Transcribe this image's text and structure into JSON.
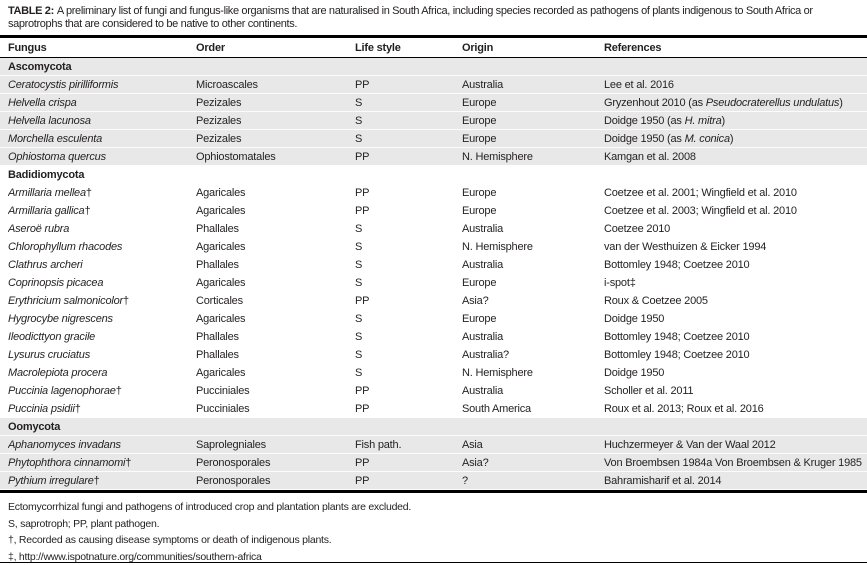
{
  "title": {
    "label": "TABLE 2:",
    "text": "A preliminary list of fungi and fungus-like organisms that are naturalised in South Africa, including species recorded as pathogens of plants indigenous to South Africa or saprotrophs that are considered to be native to other continents."
  },
  "columns": [
    "Fungus",
    "Order",
    "Life style",
    "Origin",
    "References"
  ],
  "colors": {
    "section_shade": "#e8e8e8",
    "text": "#231f20",
    "rule": "#000000"
  },
  "sections": [
    {
      "name": "Ascomycota",
      "shaded": true,
      "rows": [
        {
          "fungus": [
            [
              "Ceratocystis pirilliformis",
              true
            ]
          ],
          "order": "Microascales",
          "lifestyle": "PP",
          "origin": "Australia",
          "references": [
            [
              "Lee et al. 2016",
              false
            ]
          ]
        },
        {
          "fungus": [
            [
              "Helvella crispa",
              true
            ]
          ],
          "order": "Pezizales",
          "lifestyle": "S",
          "origin": "Europe",
          "references": [
            [
              "Gryzenhout 2010 (as ",
              false
            ],
            [
              "Pseudocraterellus undulatus",
              true
            ],
            [
              ")",
              false
            ]
          ]
        },
        {
          "fungus": [
            [
              "Helvella lacunosa",
              true
            ]
          ],
          "order": "Pezizales",
          "lifestyle": "S",
          "origin": "Europe",
          "references": [
            [
              "Doidge 1950 (as ",
              false
            ],
            [
              "H. mitra",
              true
            ],
            [
              ")",
              false
            ]
          ]
        },
        {
          "fungus": [
            [
              "Morchella esculenta",
              true
            ]
          ],
          "order": "Pezizales",
          "lifestyle": "S",
          "origin": "Europe",
          "references": [
            [
              "Doidge 1950 (as ",
              false
            ],
            [
              "M. conica",
              true
            ],
            [
              ")",
              false
            ]
          ]
        },
        {
          "fungus": [
            [
              "Ophiostoma quercus",
              true
            ]
          ],
          "order": "Ophiostomatales",
          "lifestyle": "PP",
          "origin": "N. Hemisphere",
          "references": [
            [
              "Kamgan et al. 2008",
              false
            ]
          ]
        }
      ]
    },
    {
      "name": "Badidiomycota",
      "shaded": false,
      "rows": [
        {
          "fungus": [
            [
              "Armillaria mellea",
              true
            ],
            [
              "†",
              false
            ]
          ],
          "order": "Agaricales",
          "lifestyle": "PP",
          "origin": "Europe",
          "references": [
            [
              "Coetzee et al. 2001; Wingfield et al. 2010",
              false
            ]
          ]
        },
        {
          "fungus": [
            [
              "Armillaria gallica",
              true
            ],
            [
              "†",
              false
            ]
          ],
          "order": "Agaricales",
          "lifestyle": "PP",
          "origin": "Europe",
          "references": [
            [
              "Coetzee et al. 2003; Wingfield et al. 2010",
              false
            ]
          ]
        },
        {
          "fungus": [
            [
              "Aseroë rubra",
              true
            ]
          ],
          "order": "Phallales",
          "lifestyle": "S",
          "origin": "Australia",
          "references": [
            [
              "Coetzee 2010",
              false
            ]
          ]
        },
        {
          "fungus": [
            [
              "Chlorophyllum rhacodes",
              true
            ]
          ],
          "order": "Agaricales",
          "lifestyle": "S",
          "origin": "N. Hemisphere",
          "references": [
            [
              "van der Westhuizen & Eicker 1994",
              false
            ]
          ]
        },
        {
          "fungus": [
            [
              "Clathrus archeri",
              true
            ]
          ],
          "order": "Phallales",
          "lifestyle": "S",
          "origin": "Australia",
          "references": [
            [
              "Bottomley 1948; Coetzee 2010",
              false
            ]
          ]
        },
        {
          "fungus": [
            [
              "Coprinopsis picacea",
              true
            ]
          ],
          "order": "Agaricales",
          "lifestyle": "S",
          "origin": "Europe",
          "references": [
            [
              "i-spot‡",
              false
            ]
          ]
        },
        {
          "fungus": [
            [
              "Erythricium salmonicolor",
              true
            ],
            [
              "†",
              false
            ]
          ],
          "order": "Corticales",
          "lifestyle": "PP",
          "origin": "Asia?",
          "references": [
            [
              "Roux & Coetzee 2005",
              false
            ]
          ]
        },
        {
          "fungus": [
            [
              "Hygrocybe nigrescens",
              true
            ]
          ],
          "order": "Agaricales",
          "lifestyle": "S",
          "origin": "Europe",
          "references": [
            [
              "Doidge 1950",
              false
            ]
          ]
        },
        {
          "fungus": [
            [
              "Ileodicttyon gracile",
              true
            ]
          ],
          "order": "Phallales",
          "lifestyle": "S",
          "origin": "Australia",
          "references": [
            [
              "Bottomley 1948; Coetzee 2010",
              false
            ]
          ]
        },
        {
          "fungus": [
            [
              "Lysurus cruciatus",
              true
            ]
          ],
          "order": "Phallales",
          "lifestyle": "S",
          "origin": "Australia?",
          "references": [
            [
              "Bottomley 1948; Coetzee 2010",
              false
            ]
          ]
        },
        {
          "fungus": [
            [
              "Macrolepiota procera",
              true
            ]
          ],
          "order": "Agaricales",
          "lifestyle": "S",
          "origin": "N. Hemisphere",
          "references": [
            [
              "Doidge 1950",
              false
            ]
          ]
        },
        {
          "fungus": [
            [
              "Puccinia lagenophorae",
              true
            ],
            [
              "†",
              false
            ]
          ],
          "order": "Pucciniales",
          "lifestyle": "PP",
          "origin": "Australia",
          "references": [
            [
              "Scholler et al. 2011",
              false
            ]
          ]
        },
        {
          "fungus": [
            [
              "Puccinia psidii",
              true
            ],
            [
              "†",
              false
            ]
          ],
          "order": "Pucciniales",
          "lifestyle": "PP",
          "origin": "South America",
          "references": [
            [
              "Roux et al. 2013; Roux et al. 2016",
              false
            ]
          ]
        }
      ]
    },
    {
      "name": "Oomycota",
      "shaded": true,
      "rows": [
        {
          "fungus": [
            [
              "Aphanomyces invadans",
              true
            ]
          ],
          "order": "Saprolegniales",
          "lifestyle": "Fish path.",
          "origin": "Asia",
          "references": [
            [
              "Huchzermeyer & Van der Waal 2012",
              false
            ]
          ]
        },
        {
          "fungus": [
            [
              "Phytophthora cinnamomi",
              true
            ],
            [
              "†",
              false
            ]
          ],
          "order": "Peronosporales",
          "lifestyle": "PP",
          "origin": "Asia?",
          "references": [
            [
              "Von Broembsen 1984a Von Broembsen & Kruger 1985",
              false
            ]
          ]
        },
        {
          "fungus": [
            [
              "Pythium irregulare",
              true
            ],
            [
              "†",
              false
            ]
          ],
          "order": "Peronosporales",
          "lifestyle": "PP",
          "origin": "?",
          "references": [
            [
              "Bahramisharif et al. 2014",
              false
            ]
          ]
        }
      ]
    }
  ],
  "footnotes": [
    "Ectomycorrhizal fungi and pathogens of introduced crop and plantation plants are excluded.",
    "S, saprotroph; PP, plant pathogen.",
    "†, Recorded as causing disease symptoms or death of indigenous plants.",
    "‡, http://www.ispotnature.org/communities/southern-africa"
  ]
}
